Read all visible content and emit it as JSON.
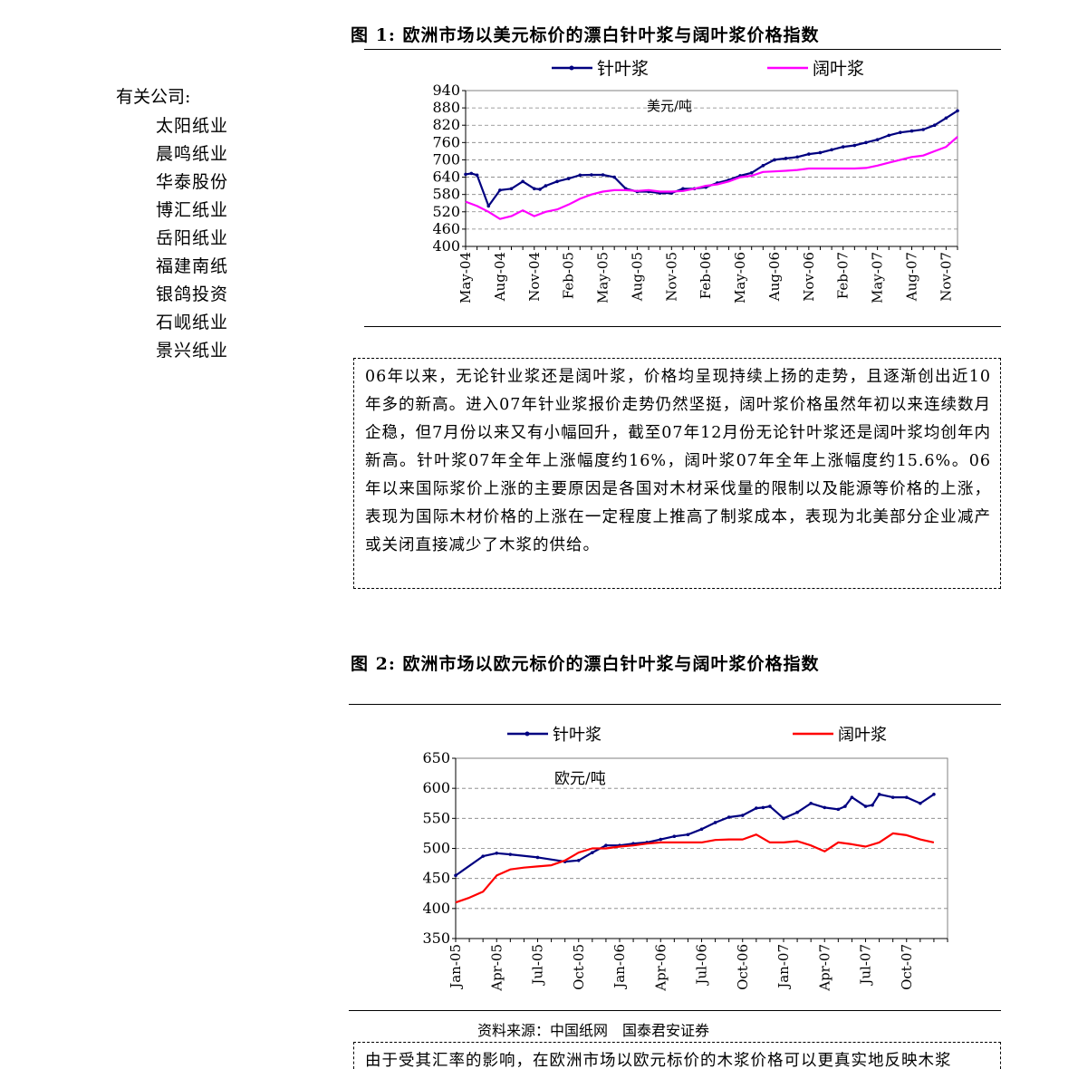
{
  "sidebar": {
    "title": "有关公司:",
    "companies": [
      "太阳纸业",
      "晨鸣纸业",
      "华泰股份",
      "博汇纸业",
      "岳阳纸业",
      "福建南纸",
      "银鸽投资",
      "石岘纸业",
      "景兴纸业"
    ]
  },
  "figure1": {
    "caption": "图 1: 欧洲市场以美元标价的漂白针叶浆与阔叶浆价格指数",
    "chart_data": {
      "type": "line",
      "unit_label": "美元/吨",
      "ylim": [
        400,
        940
      ],
      "yticks": [
        400,
        460,
        520,
        580,
        640,
        700,
        760,
        820,
        880,
        940
      ],
      "grid": true,
      "legend_position": "top",
      "xlim": [
        0,
        43
      ],
      "x_tick_labels": [
        {
          "x": 0,
          "label": "May-04"
        },
        {
          "x": 3,
          "label": "Aug-04"
        },
        {
          "x": 6,
          "label": "Nov-04"
        },
        {
          "x": 9,
          "label": "Feb-05"
        },
        {
          "x": 12,
          "label": "May-05"
        },
        {
          "x": 15,
          "label": "Aug-05"
        },
        {
          "x": 18,
          "label": "Nov-05"
        },
        {
          "x": 21,
          "label": "Feb-06"
        },
        {
          "x": 24,
          "label": "May-06"
        },
        {
          "x": 27,
          "label": "Aug-06"
        },
        {
          "x": 30,
          "label": "Nov-06"
        },
        {
          "x": 33,
          "label": "Feb-07"
        },
        {
          "x": 36,
          "label": "May-07"
        },
        {
          "x": 39,
          "label": "Aug-07"
        },
        {
          "x": 42,
          "label": "Nov-07"
        }
      ],
      "series": [
        {
          "name": "针叶浆",
          "color": "#000080",
          "marker": true,
          "x": [
            0,
            0.5,
            1,
            2,
            3,
            4,
            5,
            6,
            6.5,
            7,
            8,
            9,
            10,
            11,
            12,
            13,
            14,
            15,
            16,
            17,
            18,
            19,
            20,
            21,
            22,
            23,
            24,
            25,
            26,
            27,
            28,
            29,
            30,
            31,
            32,
            33,
            34,
            35,
            36,
            37,
            38,
            39,
            40,
            41,
            42,
            43
          ],
          "values": [
            650,
            653,
            647,
            540,
            595,
            600,
            625,
            600,
            598,
            610,
            625,
            635,
            647,
            648,
            648,
            640,
            600,
            590,
            590,
            585,
            585,
            600,
            600,
            605,
            620,
            630,
            645,
            655,
            680,
            700,
            705,
            710,
            720,
            725,
            735,
            745,
            750,
            760,
            770,
            785,
            795,
            800,
            805,
            820,
            845,
            870
          ]
        },
        {
          "name": "阔叶浆",
          "color": "#ff00ff",
          "marker": false,
          "x": [
            0,
            1,
            2,
            3,
            4,
            5,
            6,
            7,
            8,
            9,
            10,
            11,
            12,
            13,
            14,
            15,
            16,
            17,
            18,
            19,
            20,
            21,
            22,
            23,
            24,
            25,
            26,
            27,
            28,
            29,
            30,
            31,
            32,
            33,
            34,
            35,
            36,
            37,
            38,
            39,
            40,
            41,
            42,
            43
          ],
          "values": [
            555,
            540,
            520,
            495,
            505,
            525,
            505,
            520,
            528,
            545,
            565,
            580,
            590,
            595,
            595,
            592,
            595,
            590,
            590,
            592,
            600,
            610,
            615,
            625,
            640,
            645,
            658,
            660,
            662,
            665,
            670,
            670,
            670,
            670,
            670,
            672,
            680,
            690,
            700,
            710,
            715,
            730,
            745,
            780
          ]
        }
      ]
    }
  },
  "paragraph": "06年以来，无论针业浆还是阔叶浆，价格均呈现持续上扬的走势，且逐渐创出近10年多的新高。进入07年针业浆报价走势仍然坚挺，阔叶浆价格虽然年初以来连续数月企稳，但7月份以来又有小幅回升，截至07年12月份无论针叶浆还是阔叶浆均创年内新高。针叶浆07年全年上涨幅度约16%，阔叶浆07年全年上涨幅度约15.6%。06年以来国际浆价上涨的主要原因是各国对木材采伐量的限制以及能源等价格的上涨，表现为国际木材价格的上涨在一定程度上推高了制浆成本，表现为北美部分企业减产或关闭直接减少了木浆的供给。",
  "figure2": {
    "caption": "图 2: 欧洲市场以欧元标价的漂白针叶浆与阔叶浆价格指数",
    "chart_data": {
      "type": "line",
      "unit_label": "欧元/吨",
      "ylim": [
        350,
        650
      ],
      "yticks": [
        350,
        400,
        450,
        500,
        550,
        600,
        650
      ],
      "grid": true,
      "legend_position": "top",
      "xlim": [
        0,
        36
      ],
      "x_tick_labels": [
        {
          "x": 0,
          "label": "Jan-05"
        },
        {
          "x": 3,
          "label": "Apr-05"
        },
        {
          "x": 6,
          "label": "Jul-05"
        },
        {
          "x": 9,
          "label": "Oct-05"
        },
        {
          "x": 12,
          "label": "Jan-06"
        },
        {
          "x": 15,
          "label": "Apr-06"
        },
        {
          "x": 18,
          "label": "Jul-06"
        },
        {
          "x": 21,
          "label": "Oct-06"
        },
        {
          "x": 24,
          "label": "Jan-07"
        },
        {
          "x": 27,
          "label": "Apr-07"
        },
        {
          "x": 30,
          "label": "Jul-07"
        },
        {
          "x": 33,
          "label": "Oct-07"
        }
      ],
      "series": [
        {
          "name": "针叶浆",
          "color": "#000080",
          "marker": true,
          "x": [
            0,
            2,
            3,
            4,
            6,
            8,
            9,
            10,
            11,
            12,
            13,
            14,
            15,
            16,
            17,
            18,
            19,
            20,
            21,
            22,
            22.5,
            23,
            24,
            25,
            26,
            27,
            28,
            28.5,
            29,
            30,
            30.5,
            31,
            32,
            33,
            34,
            35
          ],
          "values": [
            455,
            487,
            492,
            490,
            485,
            478,
            480,
            493,
            505,
            505,
            508,
            510,
            515,
            520,
            523,
            532,
            543,
            552,
            555,
            567,
            568,
            570,
            550,
            560,
            575,
            568,
            565,
            570,
            585,
            570,
            572,
            590,
            585,
            585,
            575,
            590
          ]
        },
        {
          "name": "阔叶浆",
          "color": "#ff0000",
          "marker": false,
          "x": [
            0,
            1,
            2,
            3,
            4,
            5,
            6,
            7,
            8,
            9,
            10,
            11,
            12,
            13,
            14,
            15,
            16,
            17,
            18,
            19,
            20,
            21,
            22,
            23,
            24,
            25,
            26,
            27,
            28,
            29,
            30,
            31,
            32,
            33,
            34,
            35
          ],
          "values": [
            410,
            418,
            428,
            455,
            465,
            468,
            470,
            472,
            480,
            493,
            500,
            500,
            503,
            505,
            508,
            510,
            510,
            510,
            510,
            514,
            515,
            515,
            523,
            510,
            510,
            512,
            505,
            495,
            510,
            507,
            503,
            510,
            525,
            522,
            515,
            510
          ]
        }
      ]
    }
  },
  "source": "资料来源：中国纸网　国泰君安证券",
  "next_paragraph_fragment": "由于受其汇率的影响，在欧洲市场以欧元标价的木浆价格可以更真实地反映木浆"
}
